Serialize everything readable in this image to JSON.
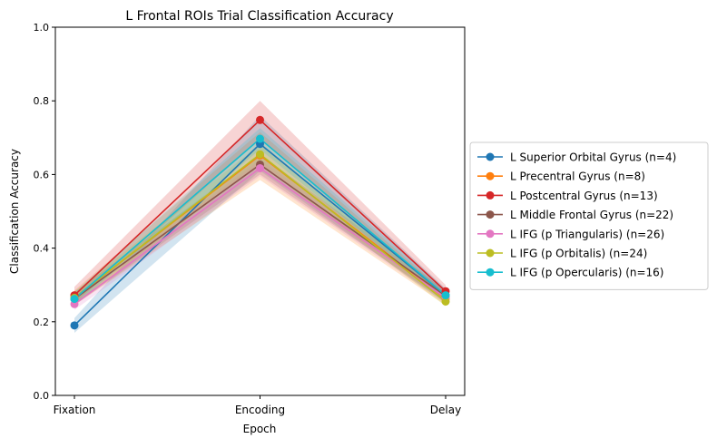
{
  "chart_data": {
    "type": "line",
    "title": "L Frontal ROIs Trial Classification Accuracy",
    "xlabel": "Epoch",
    "ylabel": "Classification Accuracy",
    "categories": [
      "Fixation",
      "Encoding",
      "Delay"
    ],
    "ylim": [
      0,
      1.0
    ],
    "yticks": [
      "0.0",
      "0.2",
      "0.4",
      "0.6",
      "0.8",
      "1.0"
    ],
    "grid": false,
    "legend_position": "right-center",
    "series": [
      {
        "name": "L Superior Orbital Gyrus (n=4)",
        "color": "#1f77b4",
        "values": [
          0.19,
          0.683,
          0.272
        ],
        "lower": [
          0.17,
          0.61,
          0.25
        ],
        "upper": [
          0.21,
          0.76,
          0.29
        ]
      },
      {
        "name": "L Precentral Gyrus (n=8)",
        "color": "#ff7f0e",
        "values": [
          0.265,
          0.652,
          0.262
        ],
        "lower": [
          0.245,
          0.585,
          0.245
        ],
        "upper": [
          0.285,
          0.715,
          0.28
        ]
      },
      {
        "name": "L Postcentral Gyrus (n=13)",
        "color": "#d62728",
        "values": [
          0.272,
          0.748,
          0.283
        ],
        "lower": [
          0.25,
          0.695,
          0.265
        ],
        "upper": [
          0.295,
          0.8,
          0.3
        ]
      },
      {
        "name": "L Middle Frontal Gyrus (n=22)",
        "color": "#8c564b",
        "values": [
          0.262,
          0.627,
          0.27
        ],
        "lower": [
          0.245,
          0.6,
          0.255
        ],
        "upper": [
          0.28,
          0.655,
          0.285
        ]
      },
      {
        "name": "L IFG (p Triangularis) (n=26)",
        "color": "#e377c2",
        "values": [
          0.248,
          0.617,
          0.265
        ],
        "lower": [
          0.232,
          0.595,
          0.25
        ],
        "upper": [
          0.265,
          0.64,
          0.28
        ]
      },
      {
        "name": "L IFG (p Orbitalis) (n=24)",
        "color": "#bcbd22",
        "values": [
          0.265,
          0.655,
          0.255
        ],
        "lower": [
          0.248,
          0.628,
          0.242
        ],
        "upper": [
          0.282,
          0.682,
          0.27
        ]
      },
      {
        "name": "L IFG (p Opercularis) (n=16)",
        "color": "#17becf",
        "values": [
          0.262,
          0.697,
          0.272
        ],
        "lower": [
          0.245,
          0.668,
          0.258
        ],
        "upper": [
          0.28,
          0.726,
          0.287
        ]
      }
    ]
  }
}
